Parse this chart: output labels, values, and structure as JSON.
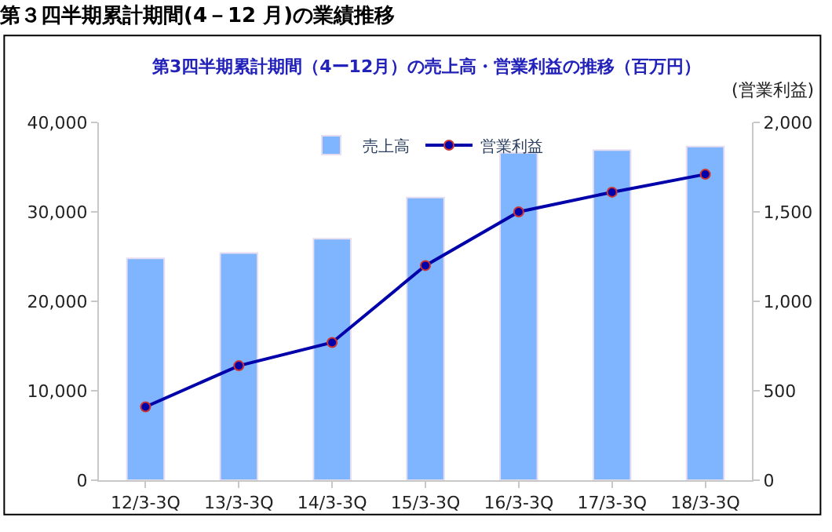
{
  "chart_data": {
    "type": "bar",
    "title": "第３四半期累計期間(4－12 月)の業績推移",
    "subtitle": "第3四半期累計期間（4ー12月）の売上高・営業利益の推移（百万円）",
    "y2label": "(営業利益)",
    "categories": [
      "12/3-3Q",
      "13/3-3Q",
      "14/3-3Q",
      "15/3-3Q",
      "16/3-3Q",
      "17/3-3Q",
      "18/3-3Q"
    ],
    "series": [
      {
        "name": "売上高",
        "color": "#7fb5ff",
        "values": [
          24800,
          25400,
          27000,
          31600,
          36600,
          36900,
          37300
        ]
      },
      {
        "name": "営業利益",
        "type": "line",
        "axis": "y2",
        "color": "#0000aa",
        "marker": "circle",
        "values": [
          410,
          640,
          770,
          1200,
          1500,
          1610,
          1710
        ]
      }
    ],
    "ylim": [
      0,
      40000
    ],
    "yticks": [
      {
        "value": 0,
        "label": "0"
      },
      {
        "value": 10000,
        "label": "10,000"
      },
      {
        "value": 20000,
        "label": "20,000"
      },
      {
        "value": 30000,
        "label": "30,000"
      },
      {
        "value": 40000,
        "label": "40,000"
      }
    ],
    "y2lim": [
      0,
      2000
    ],
    "y2ticks": [
      {
        "value": 0,
        "label": "0"
      },
      {
        "value": 500,
        "label": "500"
      },
      {
        "value": 1000,
        "label": "1,000"
      },
      {
        "value": 1500,
        "label": "1,500"
      },
      {
        "value": 2000,
        "label": "2,000"
      }
    ],
    "legend": "top"
  }
}
